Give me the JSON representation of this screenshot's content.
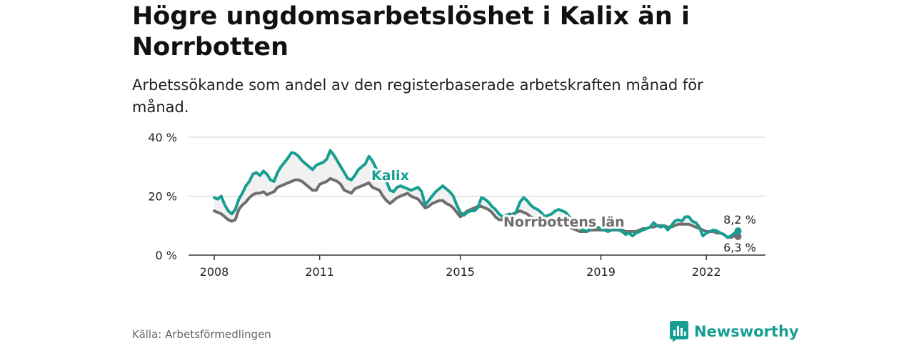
{
  "header": {
    "title": "Högre ungdomsarbetslöshet i Kalix än i Norrbotten",
    "subtitle": "Arbetssökande som andel av den registerbaserade arbetskraften månad för månad."
  },
  "footer": {
    "source": "Källa: Arbetsförmedlingen",
    "brand": "Newsworthy"
  },
  "colors": {
    "kalix": "#169e92",
    "norrbotten": "#6e6e6e",
    "grid": "#d9d9d9",
    "band": "#f1f1f1"
  },
  "chart_data": {
    "type": "line",
    "title": "Högre ungdomsarbetslöshet i Kalix än i Norrbotten",
    "ylabel": "",
    "xlabel": "",
    "ylim": [
      0,
      40
    ],
    "x_range": [
      2008,
      2022.95
    ],
    "yticks": [
      {
        "value": 0,
        "label": "0 %"
      },
      {
        "value": 20,
        "label": "20 %"
      },
      {
        "value": 40,
        "label": "40 %"
      }
    ],
    "xticks": [
      {
        "value": 2008,
        "label": "2008"
      },
      {
        "value": 2011,
        "label": "2011"
      },
      {
        "value": 2015,
        "label": "2015"
      },
      {
        "value": 2019,
        "label": "2019"
      },
      {
        "value": 2022,
        "label": "2022"
      }
    ],
    "series": [
      {
        "name": "Kalix",
        "label": "Kalix",
        "end_label": "8,2 %",
        "points": [
          [
            2008.0,
            19.5
          ],
          [
            2008.1,
            19
          ],
          [
            2008.2,
            20
          ],
          [
            2008.3,
            17
          ],
          [
            2008.4,
            15
          ],
          [
            2008.5,
            14
          ],
          [
            2008.6,
            15.5
          ],
          [
            2008.7,
            19
          ],
          [
            2008.8,
            21
          ],
          [
            2008.9,
            23.5
          ],
          [
            2009.0,
            25
          ],
          [
            2009.1,
            27.5
          ],
          [
            2009.2,
            28
          ],
          [
            2009.3,
            27
          ],
          [
            2009.4,
            28.5
          ],
          [
            2009.5,
            27.5
          ],
          [
            2009.6,
            25.5
          ],
          [
            2009.7,
            25
          ],
          [
            2009.8,
            28
          ],
          [
            2009.9,
            30
          ],
          [
            2010.0,
            31.5
          ],
          [
            2010.1,
            33
          ],
          [
            2010.2,
            34.8
          ],
          [
            2010.3,
            34.5
          ],
          [
            2010.4,
            33.5
          ],
          [
            2010.5,
            32
          ],
          [
            2010.6,
            31
          ],
          [
            2010.7,
            30
          ],
          [
            2010.8,
            29
          ],
          [
            2010.9,
            30.5
          ],
          [
            2011.0,
            31
          ],
          [
            2011.1,
            31.5
          ],
          [
            2011.2,
            32.5
          ],
          [
            2011.3,
            35.5
          ],
          [
            2011.4,
            34
          ],
          [
            2011.5,
            32
          ],
          [
            2011.6,
            30
          ],
          [
            2011.7,
            28
          ],
          [
            2011.8,
            26
          ],
          [
            2011.9,
            25.5
          ],
          [
            2012.0,
            27
          ],
          [
            2012.1,
            29
          ],
          [
            2012.2,
            30
          ],
          [
            2012.3,
            31
          ],
          [
            2012.4,
            33.5
          ],
          [
            2012.5,
            32
          ],
          [
            2012.6,
            29.5
          ],
          [
            2012.7,
            28
          ],
          [
            2012.8,
            26.5
          ],
          [
            2012.9,
            25
          ],
          [
            2013.0,
            22
          ],
          [
            2013.1,
            21.5
          ],
          [
            2013.2,
            23
          ],
          [
            2013.3,
            23.5
          ],
          [
            2013.4,
            23
          ],
          [
            2013.5,
            22.5
          ],
          [
            2013.6,
            22
          ],
          [
            2013.7,
            22.5
          ],
          [
            2013.8,
            23
          ],
          [
            2013.9,
            21.5
          ],
          [
            2014.0,
            17
          ],
          [
            2014.1,
            18.5
          ],
          [
            2014.2,
            20
          ],
          [
            2014.3,
            21.5
          ],
          [
            2014.4,
            22.5
          ],
          [
            2014.5,
            23.5
          ],
          [
            2014.6,
            22.5
          ],
          [
            2014.7,
            21.5
          ],
          [
            2014.8,
            20
          ],
          [
            2014.9,
            17
          ],
          [
            2015.0,
            14.5
          ],
          [
            2015.1,
            13.5
          ],
          [
            2015.2,
            14.5
          ],
          [
            2015.3,
            15
          ],
          [
            2015.4,
            15
          ],
          [
            2015.5,
            16
          ],
          [
            2015.6,
            19.5
          ],
          [
            2015.7,
            19
          ],
          [
            2015.8,
            18
          ],
          [
            2015.9,
            16.5
          ],
          [
            2016.0,
            15.5
          ],
          [
            2016.1,
            14
          ],
          [
            2016.2,
            13
          ],
          [
            2016.3,
            13.5
          ],
          [
            2016.4,
            14
          ],
          [
            2016.5,
            13
          ],
          [
            2016.6,
            15
          ],
          [
            2016.7,
            18
          ],
          [
            2016.8,
            19.5
          ],
          [
            2016.9,
            18.5
          ],
          [
            2017.0,
            17
          ],
          [
            2017.1,
            16
          ],
          [
            2017.2,
            15.5
          ],
          [
            2017.3,
            14.5
          ],
          [
            2017.4,
            13
          ],
          [
            2017.5,
            13.5
          ],
          [
            2017.6,
            14
          ],
          [
            2017.7,
            15
          ],
          [
            2017.8,
            15.5
          ],
          [
            2017.9,
            15
          ],
          [
            2018.0,
            14.5
          ],
          [
            2018.1,
            13
          ],
          [
            2018.2,
            11.5
          ],
          [
            2018.3,
            10
          ],
          [
            2018.4,
            9.5
          ],
          [
            2018.5,
            8.5
          ],
          [
            2018.6,
            8
          ],
          [
            2018.7,
            9
          ],
          [
            2018.8,
            10
          ],
          [
            2018.9,
            9.5
          ],
          [
            2019.0,
            9
          ],
          [
            2019.1,
            8.5
          ],
          [
            2019.2,
            8
          ],
          [
            2019.3,
            8.5
          ],
          [
            2019.4,
            9
          ],
          [
            2019.5,
            8.5
          ],
          [
            2019.6,
            8
          ],
          [
            2019.7,
            7
          ],
          [
            2019.8,
            7.5
          ],
          [
            2019.9,
            6.5
          ],
          [
            2020.0,
            7.5
          ],
          [
            2020.1,
            8
          ],
          [
            2020.2,
            8.5
          ],
          [
            2020.3,
            9
          ],
          [
            2020.4,
            9.5
          ],
          [
            2020.5,
            11
          ],
          [
            2020.6,
            10
          ],
          [
            2020.7,
            9.5
          ],
          [
            2020.8,
            10
          ],
          [
            2020.9,
            8.5
          ],
          [
            2021.0,
            10
          ],
          [
            2021.1,
            11.5
          ],
          [
            2021.2,
            12
          ],
          [
            2021.3,
            11.5
          ],
          [
            2021.4,
            13
          ],
          [
            2021.5,
            13
          ],
          [
            2021.6,
            11.5
          ],
          [
            2021.7,
            11
          ],
          [
            2021.8,
            9.5
          ],
          [
            2021.9,
            6.5
          ],
          [
            2022.0,
            7.5
          ],
          [
            2022.1,
            8
          ],
          [
            2022.2,
            8.5
          ],
          [
            2022.3,
            8.2
          ],
          [
            2022.4,
            7.5
          ],
          [
            2022.5,
            7
          ],
          [
            2022.6,
            6
          ],
          [
            2022.7,
            6.5
          ],
          [
            2022.8,
            7.5
          ],
          [
            2022.9,
            8.2
          ]
        ]
      },
      {
        "name": "Norrbottens län",
        "label": "Norrbottens län",
        "end_label": "6,3 %",
        "points": [
          [
            2008.0,
            15
          ],
          [
            2008.1,
            14.5
          ],
          [
            2008.2,
            14
          ],
          [
            2008.3,
            13
          ],
          [
            2008.4,
            12
          ],
          [
            2008.5,
            11.5
          ],
          [
            2008.6,
            12
          ],
          [
            2008.7,
            15.5
          ],
          [
            2008.8,
            17
          ],
          [
            2008.9,
            18
          ],
          [
            2009.0,
            19.5
          ],
          [
            2009.1,
            20.5
          ],
          [
            2009.2,
            21
          ],
          [
            2009.3,
            21
          ],
          [
            2009.4,
            21.5
          ],
          [
            2009.5,
            20.5
          ],
          [
            2009.6,
            21
          ],
          [
            2009.7,
            21.5
          ],
          [
            2009.8,
            23
          ],
          [
            2009.9,
            23.5
          ],
          [
            2010.0,
            24
          ],
          [
            2010.1,
            24.5
          ],
          [
            2010.2,
            25
          ],
          [
            2010.3,
            25.5
          ],
          [
            2010.4,
            25.5
          ],
          [
            2010.5,
            25
          ],
          [
            2010.6,
            24
          ],
          [
            2010.7,
            23
          ],
          [
            2010.8,
            22
          ],
          [
            2010.9,
            22
          ],
          [
            2011.0,
            24
          ],
          [
            2011.1,
            24.5
          ],
          [
            2011.2,
            25
          ],
          [
            2011.3,
            26
          ],
          [
            2011.4,
            25.5
          ],
          [
            2011.5,
            25
          ],
          [
            2011.6,
            24
          ],
          [
            2011.7,
            22
          ],
          [
            2011.8,
            21.5
          ],
          [
            2011.9,
            21
          ],
          [
            2012.0,
            22.5
          ],
          [
            2012.1,
            23
          ],
          [
            2012.2,
            23.5
          ],
          [
            2012.3,
            24
          ],
          [
            2012.4,
            24.5
          ],
          [
            2012.5,
            23
          ],
          [
            2012.6,
            22.5
          ],
          [
            2012.7,
            22
          ],
          [
            2012.8,
            20
          ],
          [
            2012.9,
            18.5
          ],
          [
            2013.0,
            17.5
          ],
          [
            2013.1,
            18.5
          ],
          [
            2013.2,
            19.5
          ],
          [
            2013.3,
            20
          ],
          [
            2013.4,
            20.5
          ],
          [
            2013.5,
            21
          ],
          [
            2013.6,
            20
          ],
          [
            2013.7,
            19.5
          ],
          [
            2013.8,
            19
          ],
          [
            2013.9,
            17.5
          ],
          [
            2014.0,
            16
          ],
          [
            2014.1,
            16.5
          ],
          [
            2014.2,
            17.5
          ],
          [
            2014.3,
            18
          ],
          [
            2014.4,
            18.5
          ],
          [
            2014.5,
            18.5
          ],
          [
            2014.6,
            17.5
          ],
          [
            2014.7,
            17
          ],
          [
            2014.8,
            16
          ],
          [
            2014.9,
            14.5
          ],
          [
            2015.0,
            13
          ],
          [
            2015.1,
            14
          ],
          [
            2015.2,
            15
          ],
          [
            2015.3,
            15.5
          ],
          [
            2015.4,
            16
          ],
          [
            2015.5,
            16.5
          ],
          [
            2015.6,
            16.5
          ],
          [
            2015.7,
            16
          ],
          [
            2015.8,
            15.5
          ],
          [
            2015.9,
            14.5
          ],
          [
            2016.0,
            13
          ],
          [
            2016.1,
            12
          ],
          [
            2016.2,
            12
          ],
          [
            2016.3,
            13
          ],
          [
            2016.4,
            13.5
          ],
          [
            2016.5,
            14
          ],
          [
            2016.6,
            14.5
          ],
          [
            2016.7,
            15
          ],
          [
            2016.8,
            14.5
          ],
          [
            2016.9,
            14
          ],
          [
            2017.0,
            13
          ],
          [
            2017.1,
            12.5
          ],
          [
            2017.2,
            12
          ],
          [
            2017.3,
            11.5
          ],
          [
            2017.4,
            11
          ],
          [
            2017.5,
            11
          ],
          [
            2017.6,
            11.5
          ],
          [
            2017.7,
            11.5
          ],
          [
            2017.8,
            11
          ],
          [
            2017.9,
            10.5
          ],
          [
            2018.0,
            10
          ],
          [
            2018.1,
            9.5
          ],
          [
            2018.2,
            9
          ],
          [
            2018.3,
            8.5
          ],
          [
            2018.4,
            8
          ],
          [
            2018.5,
            8
          ],
          [
            2018.6,
            8
          ],
          [
            2018.7,
            8.5
          ],
          [
            2018.8,
            8.5
          ],
          [
            2018.9,
            8.5
          ],
          [
            2019.0,
            8.5
          ],
          [
            2019.1,
            8.5
          ],
          [
            2019.2,
            8.5
          ],
          [
            2019.3,
            8.5
          ],
          [
            2019.4,
            8.5
          ],
          [
            2019.5,
            8.5
          ],
          [
            2019.6,
            8.5
          ],
          [
            2019.7,
            8
          ],
          [
            2019.8,
            8
          ],
          [
            2019.9,
            8
          ],
          [
            2020.0,
            8
          ],
          [
            2020.1,
            8.5
          ],
          [
            2020.2,
            9
          ],
          [
            2020.3,
            9
          ],
          [
            2020.4,
            9.5
          ],
          [
            2020.5,
            9.5
          ],
          [
            2020.6,
            10
          ],
          [
            2020.7,
            10
          ],
          [
            2020.8,
            10
          ],
          [
            2020.9,
            9.5
          ],
          [
            2021.0,
            9.5
          ],
          [
            2021.1,
            10
          ],
          [
            2021.2,
            10.5
          ],
          [
            2021.3,
            10.5
          ],
          [
            2021.4,
            10.5
          ],
          [
            2021.5,
            10.5
          ],
          [
            2021.6,
            10
          ],
          [
            2021.7,
            9.5
          ],
          [
            2021.8,
            9
          ],
          [
            2021.9,
            8.5
          ],
          [
            2022.0,
            8
          ],
          [
            2022.1,
            8
          ],
          [
            2022.2,
            8
          ],
          [
            2022.3,
            7.5
          ],
          [
            2022.4,
            7.5
          ],
          [
            2022.5,
            7
          ],
          [
            2022.6,
            6
          ],
          [
            2022.7,
            6
          ],
          [
            2022.8,
            6.5
          ],
          [
            2022.9,
            6.3
          ]
        ]
      }
    ]
  }
}
